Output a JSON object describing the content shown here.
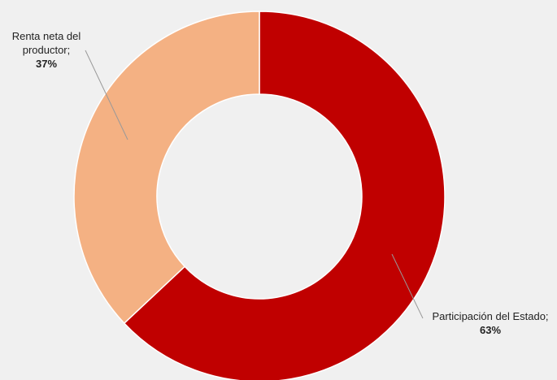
{
  "chart_data": {
    "type": "donut",
    "categories": [
      "Participación del Estado;",
      "Renta neta del productor;"
    ],
    "values": [
      63,
      37
    ],
    "value_labels": [
      "63%",
      "37%"
    ],
    "colors": [
      "#c00000",
      "#f4b183"
    ]
  }
}
